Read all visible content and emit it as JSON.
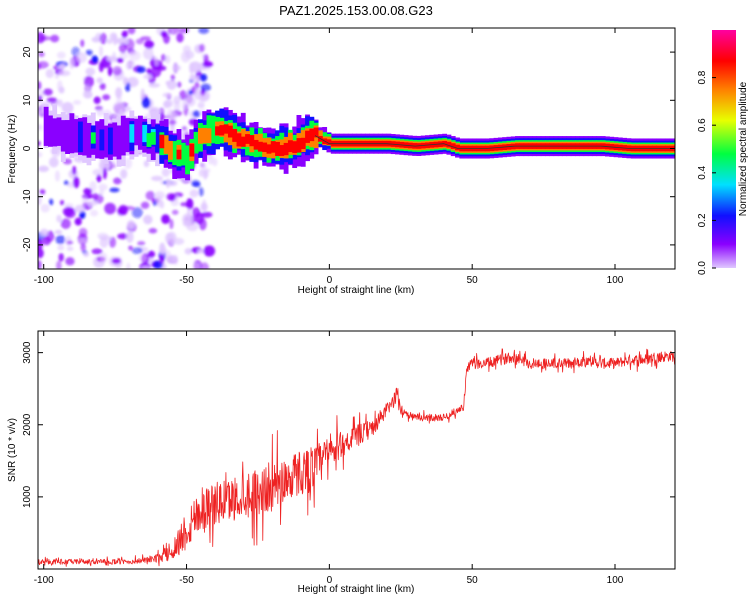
{
  "title": "PAZ1.2025.153.00.08.G23",
  "chart_data": [
    {
      "type": "heatmap",
      "xlabel": "Height of straight line (km)",
      "ylabel": "Frequency (Hz)",
      "xlim": [
        -102,
        121
      ],
      "ylim": [
        -25,
        25
      ],
      "xticks": [
        -100,
        -50,
        0,
        50,
        100
      ],
      "yticks": [
        -20,
        -10,
        0,
        10,
        20
      ],
      "colorbar": {
        "label": "Normalized spectral amplitude",
        "range": [
          0,
          1
        ],
        "ticks": [
          "0.0",
          "0.2",
          "0.4",
          "0.6",
          "0.8"
        ],
        "colormap": [
          "#e0c8ff",
          "#8a00ff",
          "#1010ff",
          "#00e0ff",
          "#00ff40",
          "#e8ff00",
          "#ff8000",
          "#ff0000",
          "#ff00a0"
        ]
      },
      "ridge": [
        {
          "x": -100,
          "f": 4.5
        },
        {
          "x": -95,
          "f": 3.0
        },
        {
          "x": -90,
          "f": 2.5
        },
        {
          "x": -85,
          "f": 2.0
        },
        {
          "x": -80,
          "f": 2.0
        },
        {
          "x": -75,
          "f": 1.5
        },
        {
          "x": -70,
          "f": 3.0
        },
        {
          "x": -65,
          "f": 2.5
        },
        {
          "x": -60,
          "f": 1.5
        },
        {
          "x": -55,
          "f": -1.0
        },
        {
          "x": -50,
          "f": -2.0
        },
        {
          "x": -47,
          "f": 2.0
        },
        {
          "x": -42,
          "f": 3.5
        },
        {
          "x": -38,
          "f": 4.0
        },
        {
          "x": -34,
          "f": 2.5
        },
        {
          "x": -30,
          "f": 1.5
        },
        {
          "x": -26,
          "f": 1.0
        },
        {
          "x": -22,
          "f": 0.0
        },
        {
          "x": -18,
          "f": 0.0
        },
        {
          "x": -14,
          "f": 0.5
        },
        {
          "x": -10,
          "f": 1.5
        },
        {
          "x": -6,
          "f": 3.0
        },
        {
          "x": -3,
          "f": 2.0
        },
        {
          "x": 0,
          "f": 1.0
        },
        {
          "x": 10,
          "f": 1.0
        },
        {
          "x": 20,
          "f": 1.0
        },
        {
          "x": 30,
          "f": 0.5
        },
        {
          "x": 40,
          "f": 1.0
        },
        {
          "x": 45,
          "f": 0.0
        },
        {
          "x": 55,
          "f": 0.0
        },
        {
          "x": 65,
          "f": 0.5
        },
        {
          "x": 75,
          "f": 0.5
        },
        {
          "x": 85,
          "f": 0.5
        },
        {
          "x": 95,
          "f": 0.5
        },
        {
          "x": 105,
          "f": 0.0
        },
        {
          "x": 121,
          "f": 0.0
        }
      ]
    },
    {
      "type": "line",
      "xlabel": "Height of straight line (km)",
      "ylabel": "SNR (10 * v/v)",
      "xlim": [
        -102,
        121
      ],
      "ylim": [
        0,
        3300
      ],
      "xticks": [
        -100,
        -50,
        0,
        50,
        100
      ],
      "yticks": [
        1000,
        2000,
        3000
      ],
      "color": "#ee2222",
      "x": [
        -100,
        -90,
        -80,
        -70,
        -65,
        -60,
        -55,
        -50,
        -45,
        -40,
        -35,
        -30,
        -25,
        -20,
        -15,
        -10,
        -5,
        0,
        5,
        10,
        15,
        20,
        22,
        24,
        25,
        30,
        35,
        40,
        45,
        47,
        48,
        50,
        55,
        60,
        65,
        70,
        75,
        80,
        85,
        90,
        95,
        100,
        105,
        110,
        115,
        120
      ],
      "y": [
        100,
        100,
        100,
        100,
        120,
        150,
        250,
        550,
        850,
        900,
        950,
        1050,
        1050,
        1150,
        1250,
        1350,
        1400,
        1600,
        1750,
        1850,
        1950,
        2200,
        2300,
        2450,
        2200,
        2100,
        2100,
        2100,
        2200,
        2250,
        2750,
        2850,
        2850,
        2900,
        2950,
        2850,
        2850,
        2850,
        2850,
        2900,
        2850,
        2850,
        2900,
        2900,
        2950,
        2950
      ],
      "noise": [
        70,
        70,
        70,
        70,
        80,
        120,
        250,
        600,
        650,
        600,
        600,
        650,
        700,
        700,
        650,
        650,
        650,
        500,
        350,
        300,
        250,
        200,
        200,
        200,
        100,
        100,
        100,
        100,
        100,
        100,
        150,
        150,
        150,
        150,
        150,
        150,
        150,
        150,
        150,
        150,
        150,
        150,
        150,
        150,
        150,
        150
      ]
    }
  ]
}
